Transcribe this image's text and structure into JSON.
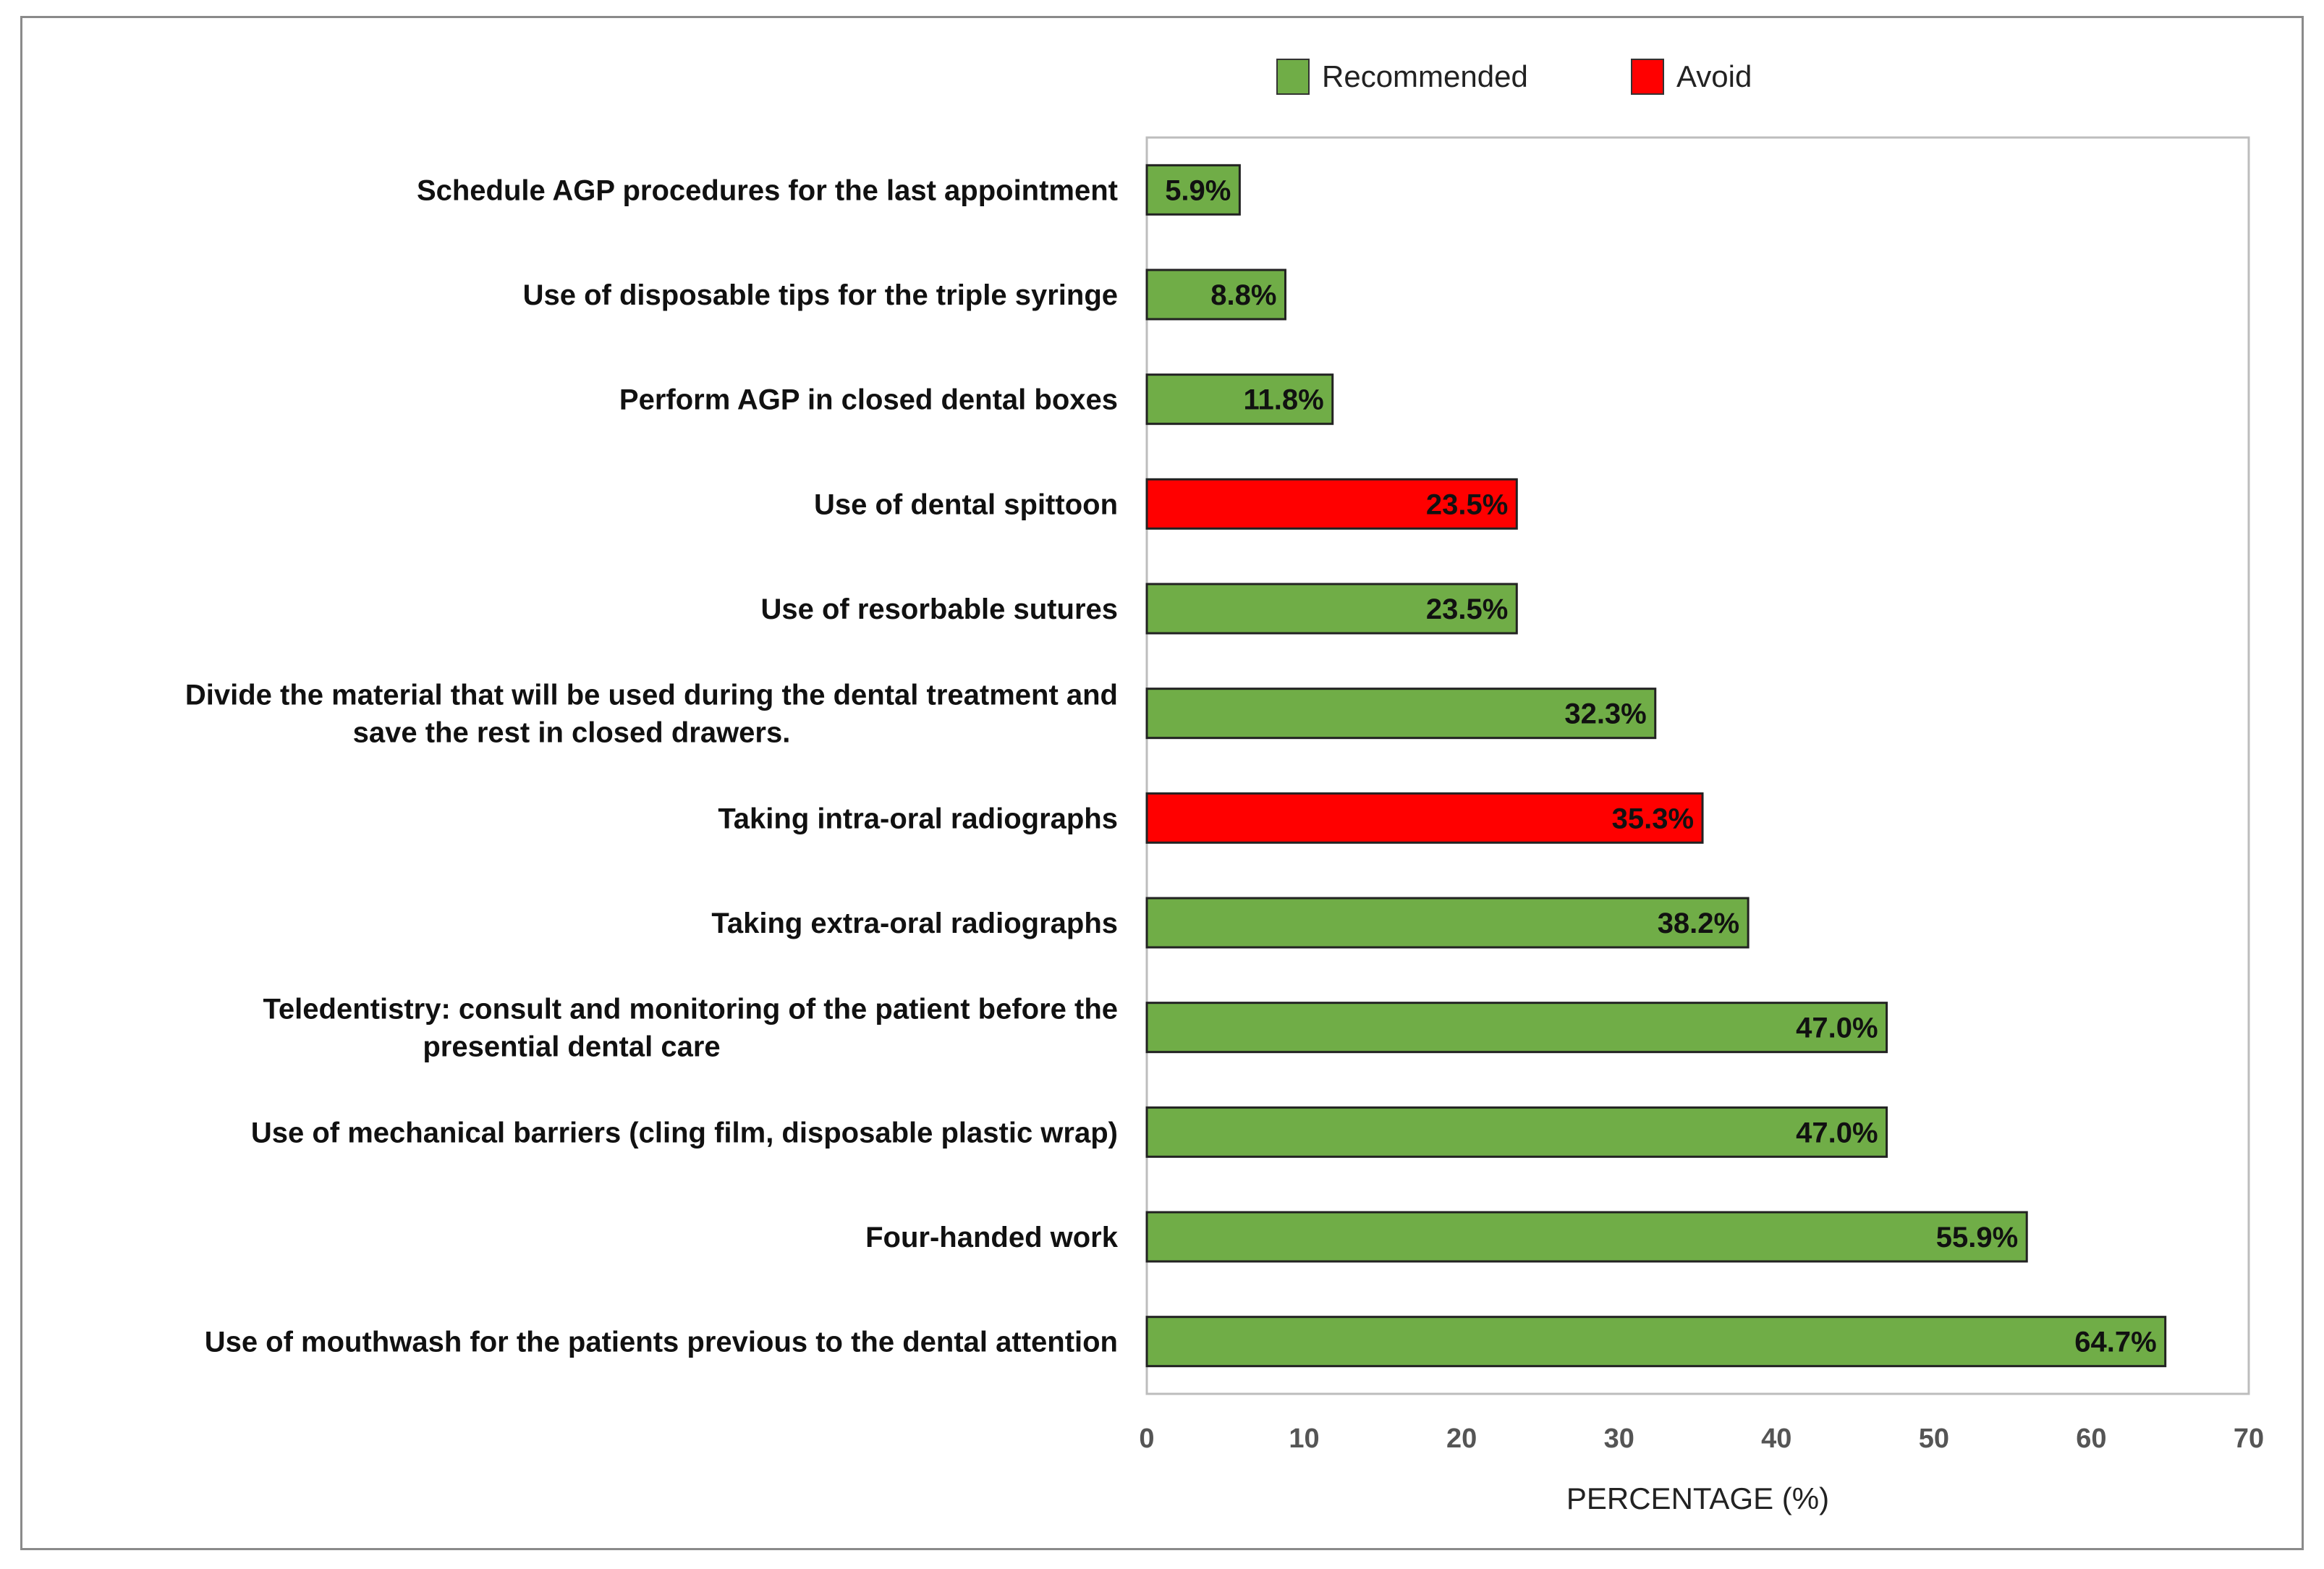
{
  "chart_data": {
    "type": "bar",
    "orientation": "horizontal",
    "categories": [
      [
        "Schedule AGP procedures for the last appointment"
      ],
      [
        "Use of disposable tips for the triple syringe"
      ],
      [
        "Perform AGP in closed dental boxes"
      ],
      [
        "Use of dental spittoon"
      ],
      [
        "Use of resorbable sutures"
      ],
      [
        "Divide the material that will be used during the dental treatment and",
        "save the rest in closed drawers."
      ],
      [
        "Taking intra-oral radiographs"
      ],
      [
        "Taking extra-oral radiographs"
      ],
      [
        "Teledentistry: consult and monitoring of the patient before the",
        "presential dental care"
      ],
      [
        "Use of mechanical barriers (cling film, disposable plastic wrap)"
      ],
      [
        "Four-handed work"
      ],
      [
        "Use of mouthwash for the patients previous to the dental attention"
      ]
    ],
    "values": [
      5.9,
      8.8,
      11.8,
      23.5,
      23.5,
      32.3,
      35.3,
      38.2,
      47.0,
      47.0,
      55.9,
      64.7
    ],
    "value_labels": [
      "5.9%",
      "8.8%",
      "11.8%",
      "23.5%",
      "23.5%",
      "32.3%",
      "35.3%",
      "38.2%",
      "47.0%",
      "47.0%",
      "55.9%",
      "64.7%"
    ],
    "group": [
      "Recommended",
      "Recommended",
      "Recommended",
      "Avoid",
      "Recommended",
      "Recommended",
      "Avoid",
      "Recommended",
      "Recommended",
      "Recommended",
      "Recommended",
      "Recommended"
    ],
    "legend": [
      {
        "name": "Recommended",
        "color": "#70ad47"
      },
      {
        "name": "Avoid",
        "color": "#ff0000"
      }
    ],
    "legend_position": "top",
    "xlabel": "PERCENTAGE (%)",
    "xlim": [
      0,
      70
    ],
    "xticks": [
      0,
      10,
      20,
      30,
      40,
      50,
      60,
      70
    ],
    "grid": false
  }
}
